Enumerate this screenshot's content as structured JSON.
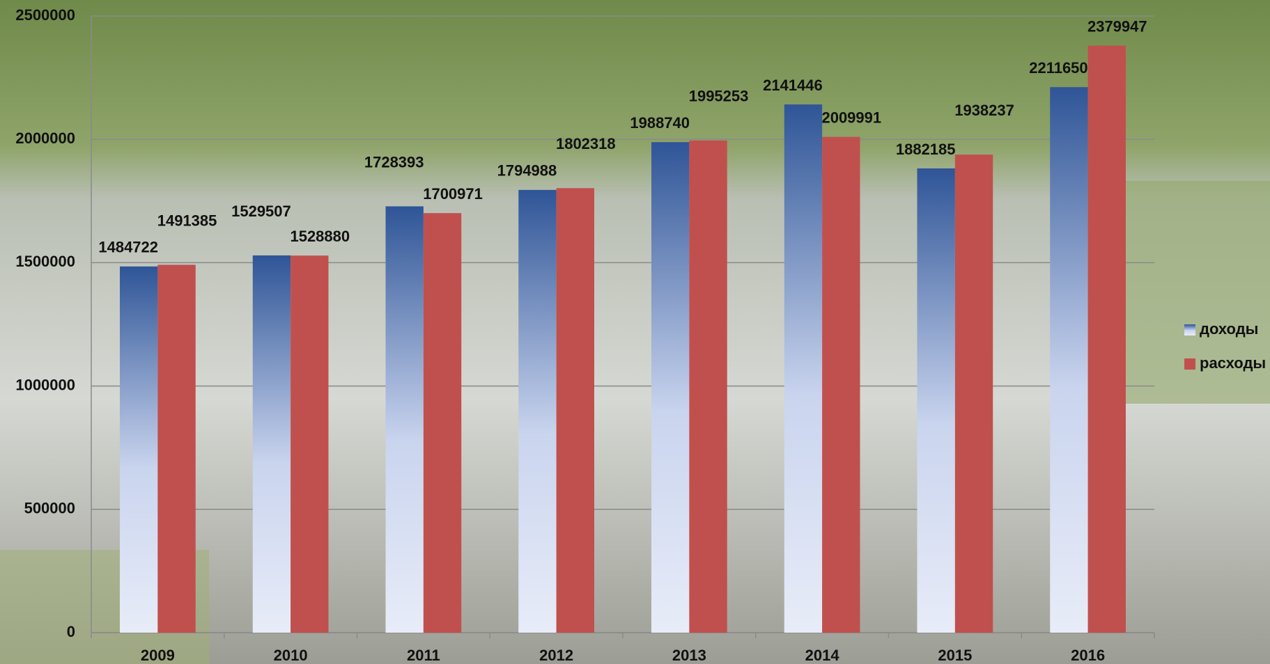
{
  "chart_data": {
    "type": "bar",
    "categories": [
      "2009",
      "2010",
      "2011",
      "2012",
      "2013",
      "2014",
      "2015",
      "2016"
    ],
    "series": [
      {
        "name": "доходы",
        "color": "#2f5597",
        "values": [
          1484722,
          1529507,
          1728393,
          1794988,
          1988740,
          2141446,
          1882185,
          2211650
        ]
      },
      {
        "name": "расходы",
        "color": "#c0504d",
        "values": [
          1491385,
          1528880,
          1700971,
          1802318,
          1995253,
          2009991,
          1938237,
          2379947
        ]
      }
    ],
    "ylim": [
      0,
      2500000
    ],
    "yticks": [
      0,
      500000,
      1000000,
      1500000,
      2000000,
      2500000
    ],
    "grid": true,
    "legend": "right"
  }
}
